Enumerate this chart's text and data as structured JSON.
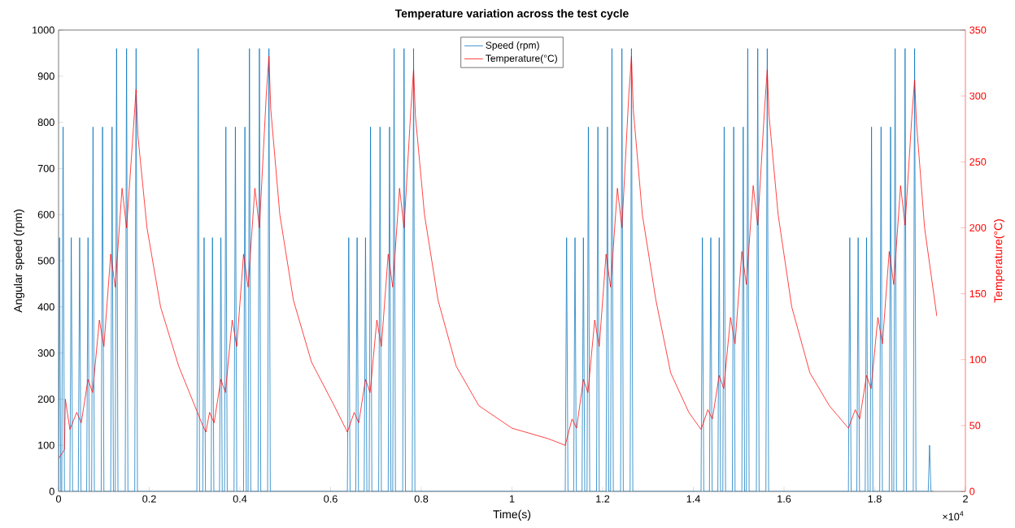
{
  "chart_data": {
    "type": "line",
    "title": "Temperature variation across the test cycle",
    "xlabel": "Time(s)",
    "ylabel": "Angular speed (rpm)",
    "y2label": "Temperature(°C)",
    "xlim": [
      0,
      2
    ],
    "xticks": [
      0,
      0.2,
      0.4,
      0.6,
      0.8,
      1,
      1.2,
      1.4,
      1.6,
      1.8,
      2
    ],
    "ylim": [
      0,
      1000
    ],
    "yticks": [
      0,
      100,
      200,
      300,
      400,
      500,
      600,
      700,
      800,
      900,
      1000
    ],
    "y2lim": [
      0,
      350
    ],
    "y2ticks": [
      0,
      50,
      100,
      150,
      200,
      250,
      300,
      350
    ],
    "legend": "top",
    "annotations": [
      "×10$^{4}$"
    ],
    "series": [
      {
        "name": "Speed (rpm)",
        "color": "#0072bd",
        "axis": "y",
        "x": [
          0,
          0.002,
          0.005,
          0.007,
          0.01,
          0.013,
          0.025,
          0.028,
          0.031,
          0.0435,
          0.0465,
          0.0495,
          0.062,
          0.065,
          0.068,
          0.073,
          0.076,
          0.079,
          0.094,
          0.097,
          0.1,
          0.115,
          0.118,
          0.121,
          0.125,
          0.128,
          0.131,
          0.147,
          0.15,
          0.153,
          0.168,
          0.171,
          0.174,
          0.305,
          0.308,
          0.311,
          0.318,
          0.321,
          0.324,
          0.3365,
          0.3395,
          0.3425,
          0.355,
          0.358,
          0.361,
          0.366,
          0.369,
          0.372,
          0.387,
          0.39,
          0.393,
          0.408,
          0.411,
          0.414,
          0.418,
          0.421,
          0.424,
          0.44,
          0.443,
          0.446,
          0.461,
          0.464,
          0.467,
          0.637,
          0.64,
          0.643,
          0.6555,
          0.6585,
          0.6615,
          0.674,
          0.677,
          0.68,
          0.685,
          0.688,
          0.691,
          0.706,
          0.709,
          0.712,
          0.727,
          0.73,
          0.733,
          0.737,
          0.74,
          0.743,
          0.759,
          0.762,
          0.765,
          0.78,
          0.783,
          0.786,
          1.1175,
          1.1205,
          1.1235,
          1.136,
          1.139,
          1.142,
          1.1545,
          1.1575,
          1.1605,
          1.1655,
          1.1685,
          1.1715,
          1.1865,
          1.1895,
          1.1925,
          1.2075,
          1.2105,
          1.2135,
          1.2175,
          1.2205,
          1.2235,
          1.2395,
          1.2425,
          1.2455,
          1.2605,
          1.2635,
          1.2665,
          1.417,
          1.42,
          1.423,
          1.4355,
          1.4385,
          1.4415,
          1.454,
          1.457,
          1.46,
          1.465,
          1.468,
          1.471,
          1.486,
          1.489,
          1.492,
          1.507,
          1.51,
          1.513,
          1.517,
          1.52,
          1.523,
          1.539,
          1.542,
          1.545,
          1.56,
          1.563,
          1.566,
          1.742,
          1.745,
          1.748,
          1.7605,
          1.7635,
          1.7665,
          1.779,
          1.782,
          1.785,
          1.79,
          1.793,
          1.796,
          1.811,
          1.814,
          1.817,
          1.832,
          1.835,
          1.838,
          1.842,
          1.845,
          1.848,
          1.864,
          1.867,
          1.87,
          1.885,
          1.888,
          1.891,
          1.918,
          1.921,
          1.924,
          1.93
        ],
        "values": [
          0,
          550,
          0,
          0,
          790,
          0,
          0,
          550,
          0,
          0,
          550,
          0,
          0,
          550,
          0,
          0,
          790,
          0,
          0,
          790,
          0,
          0,
          790,
          0,
          0,
          960,
          0,
          0,
          960,
          0,
          0,
          960,
          0,
          0,
          960,
          0,
          0,
          550,
          0,
          0,
          550,
          0,
          0,
          550,
          0,
          0,
          790,
          0,
          0,
          790,
          0,
          0,
          790,
          0,
          0,
          960,
          0,
          0,
          960,
          0,
          0,
          960,
          0,
          0,
          550,
          0,
          0,
          550,
          0,
          0,
          550,
          0,
          0,
          790,
          0,
          0,
          790,
          0,
          0,
          790,
          0,
          0,
          960,
          0,
          0,
          960,
          0,
          0,
          960,
          0,
          0,
          550,
          0,
          0,
          550,
          0,
          0,
          550,
          0,
          0,
          790,
          0,
          0,
          790,
          0,
          0,
          790,
          0,
          0,
          960,
          0,
          0,
          960,
          0,
          0,
          960,
          0,
          0,
          550,
          0,
          0,
          550,
          0,
          0,
          550,
          0,
          0,
          790,
          0,
          0,
          790,
          0,
          0,
          790,
          0,
          0,
          960,
          0,
          0,
          960,
          0,
          0,
          960,
          0,
          0,
          550,
          0,
          0,
          550,
          0,
          0,
          550,
          0,
          0,
          790,
          0,
          0,
          790,
          0,
          0,
          790,
          0,
          0,
          960,
          0,
          0,
          960,
          0,
          0,
          960,
          0,
          0,
          100,
          0,
          0
        ]
      },
      {
        "name": "Temperature(°C)",
        "color": "#ff0000",
        "axis": "y2",
        "x": [
          0,
          0.01,
          0.013,
          0.015,
          0.025,
          0.04,
          0.05,
          0.065,
          0.075,
          0.09,
          0.1,
          0.115,
          0.125,
          0.14,
          0.15,
          0.165,
          0.171,
          0.175,
          0.195,
          0.225,
          0.265,
          0.318,
          0.325,
          0.333,
          0.343,
          0.358,
          0.368,
          0.383,
          0.393,
          0.408,
          0.418,
          0.433,
          0.443,
          0.458,
          0.464,
          0.468,
          0.488,
          0.518,
          0.558,
          0.608,
          0.637,
          0.652,
          0.662,
          0.677,
          0.687,
          0.702,
          0.712,
          0.727,
          0.737,
          0.752,
          0.762,
          0.777,
          0.783,
          0.787,
          0.807,
          0.837,
          0.877,
          0.927,
          1,
          1.08,
          1.1175,
          1.1325,
          1.1425,
          1.1575,
          1.1675,
          1.1825,
          1.1925,
          1.2075,
          1.2175,
          1.2325,
          1.2425,
          1.2575,
          1.2635,
          1.2675,
          1.2875,
          1.3175,
          1.35,
          1.39,
          1.417,
          1.432,
          1.442,
          1.457,
          1.467,
          1.482,
          1.492,
          1.507,
          1.517,
          1.532,
          1.542,
          1.557,
          1.563,
          1.567,
          1.587,
          1.617,
          1.657,
          1.7,
          1.742,
          1.757,
          1.767,
          1.782,
          1.792,
          1.807,
          1.817,
          1.832,
          1.842,
          1.857,
          1.867,
          1.882,
          1.888,
          1.892,
          1.91,
          1.937
        ],
        "values": [
          25,
          30,
          32,
          70,
          47,
          60,
          52,
          85,
          75,
          130,
          110,
          180,
          155,
          230,
          200,
          275,
          305,
          270,
          200,
          140,
          95,
          50,
          45,
          60,
          52,
          85,
          75,
          130,
          110,
          180,
          155,
          230,
          200,
          300,
          330,
          290,
          210,
          145,
          98,
          65,
          45,
          60,
          52,
          85,
          75,
          130,
          110,
          180,
          155,
          230,
          200,
          290,
          320,
          285,
          210,
          145,
          95,
          65,
          48,
          40,
          35,
          55,
          48,
          85,
          75,
          130,
          110,
          180,
          155,
          230,
          200,
          300,
          330,
          290,
          210,
          145,
          90,
          60,
          47,
          62,
          55,
          88,
          78,
          132,
          112,
          182,
          157,
          232,
          202,
          290,
          320,
          285,
          210,
          140,
          90,
          65,
          48,
          62,
          55,
          88,
          78,
          132,
          112,
          182,
          157,
          232,
          202,
          285,
          312,
          280,
          200,
          133
        ]
      }
    ]
  }
}
